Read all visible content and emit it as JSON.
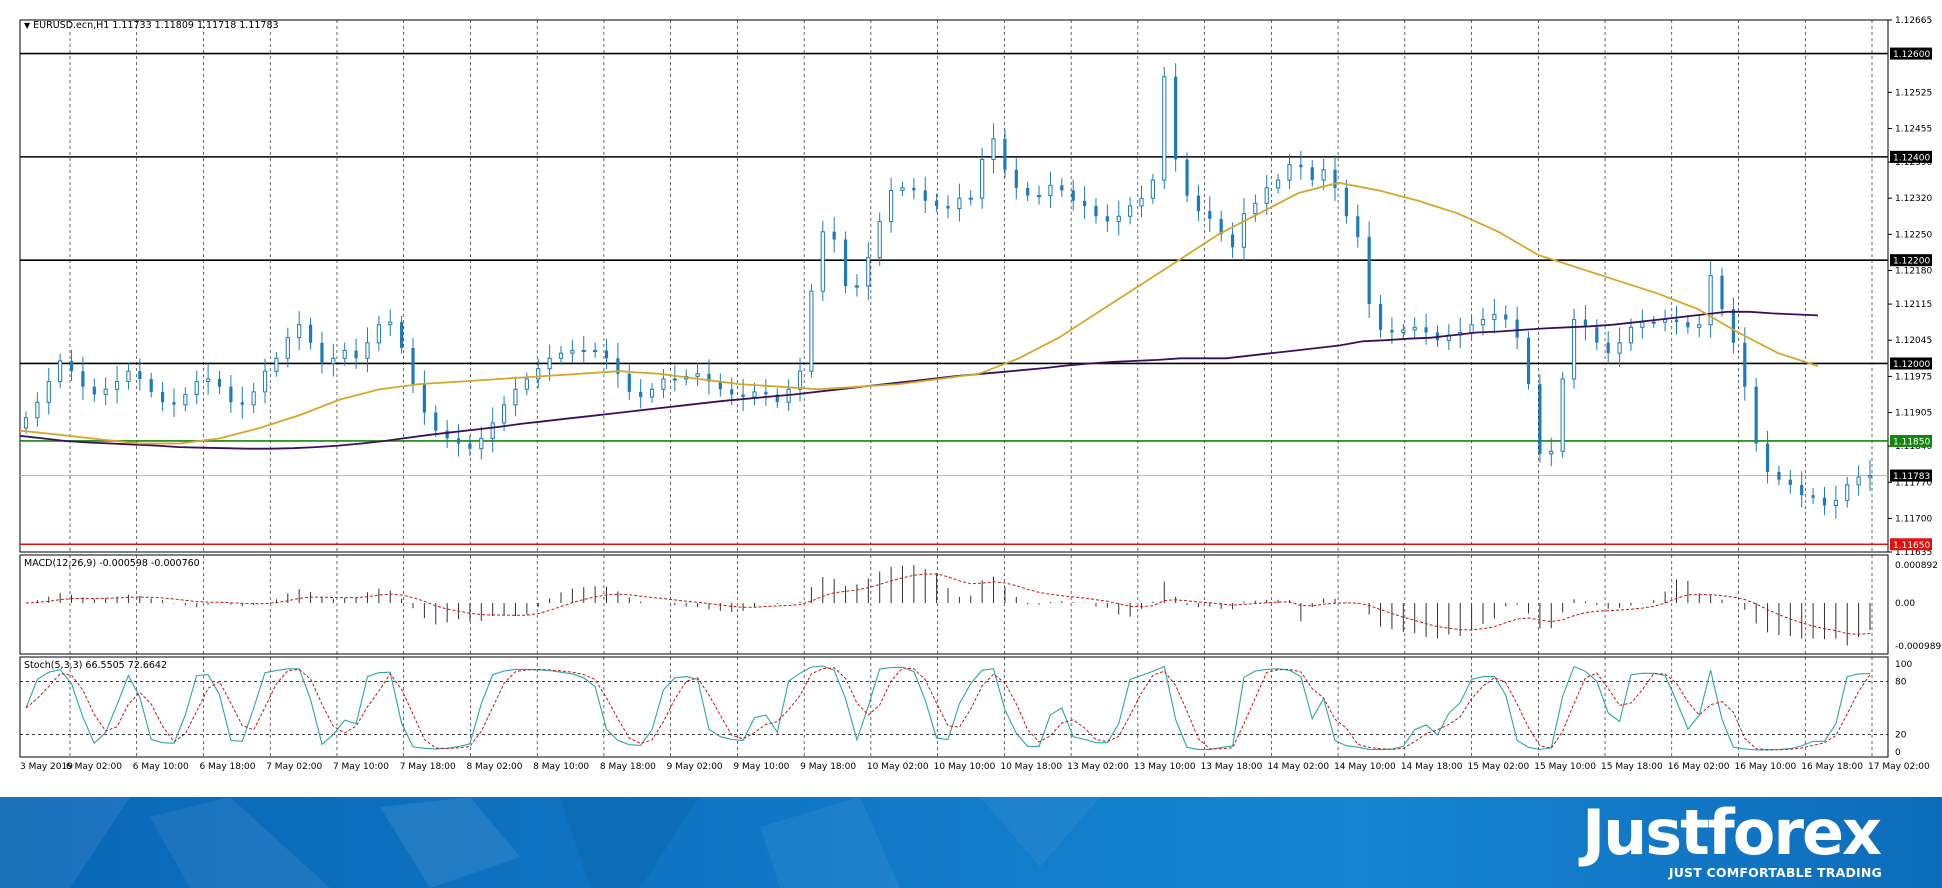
{
  "header": {
    "title": "EURUSD.ecn,H1  1.11733 1.11809 1.11718 1.11783",
    "macd_label": "MACD(12,26,9) -0.000598 -0.000760",
    "stoch_label": "Stoch(5,3,3) 66.5505 72.6642"
  },
  "brand": {
    "name": "Justforex",
    "tagline": "JUST COMFORTABLE TRADING"
  },
  "chart_data": [
    {
      "type": "candlestick",
      "title": "EURUSD.ecn,H1",
      "ohlc_current": {
        "open": 1.11733,
        "high": 1.11809,
        "low": 1.11718,
        "close": 1.11783
      },
      "ylim": [
        1.11635,
        1.12665
      ],
      "y_ticks": [
        "1.12665",
        "1.12525",
        "1.12455",
        "1.12390",
        "1.12320",
        "1.12250",
        "1.12180",
        "1.12115",
        "1.12045",
        "1.11975",
        "1.11905",
        "1.11840",
        "1.11770",
        "1.11700",
        "1.11635"
      ],
      "x_labels": [
        "3 May 2019",
        "6 May 02:00",
        "6 May 10:00",
        "6 May 18:00",
        "7 May 02:00",
        "7 May 10:00",
        "7 May 18:00",
        "8 May 02:00",
        "8 May 10:00",
        "8 May 18:00",
        "9 May 02:00",
        "9 May 10:00",
        "9 May 18:00",
        "10 May 02:00",
        "10 May 10:00",
        "10 May 18:00",
        "13 May 02:00",
        "13 May 10:00",
        "13 May 18:00",
        "14 May 02:00",
        "14 May 10:00",
        "14 May 18:00",
        "15 May 02:00",
        "15 May 10:00",
        "15 May 18:00",
        "16 May 02:00",
        "16 May 10:00",
        "16 May 18:00",
        "17 May 02:00"
      ],
      "levels": [
        {
          "label": "1.12600",
          "value": 1.126,
          "color": "#000000"
        },
        {
          "label": "1.12400",
          "value": 1.124,
          "color": "#000000"
        },
        {
          "label": "1.12200",
          "value": 1.122,
          "color": "#000000"
        },
        {
          "label": "1.12000",
          "value": 1.12,
          "color": "#000000"
        },
        {
          "label": "1.11850",
          "value": 1.1185,
          "color": "#16850f"
        },
        {
          "label": "1.11783",
          "value": 1.11783,
          "color": "#b0b0b0"
        },
        {
          "label": "1.11650",
          "value": 1.1165,
          "color": "#e01010"
        }
      ],
      "close_series": [
        1.11895,
        1.11925,
        1.11965,
        1.12005,
        1.11985,
        1.11955,
        1.1194,
        1.1195,
        1.11965,
        1.11985,
        1.1197,
        1.11945,
        1.11925,
        1.1192,
        1.1194,
        1.11965,
        1.1197,
        1.11955,
        1.11925,
        1.1192,
        1.11945,
        1.11985,
        1.1201,
        1.1205,
        1.12075,
        1.1204,
        1.12,
        1.1201,
        1.12025,
        1.1201,
        1.1204,
        1.12075,
        1.1208,
        1.1203,
        1.1196,
        1.11905,
        1.1187,
        1.11855,
        1.11845,
        1.11835,
        1.11855,
        1.11885,
        1.1192,
        1.1195,
        1.1197,
        1.1199,
        1.1201,
        1.1202,
        1.12025,
        1.12025,
        1.12025,
        1.1201,
        1.1198,
        1.11945,
        1.11935,
        1.1195,
        1.1197,
        1.1197,
        1.11975,
        1.1198,
        1.11965,
        1.1195,
        1.1194,
        1.11935,
        1.11945,
        1.1194,
        1.11925,
        1.1195,
        1.11985,
        1.1214,
        1.12255,
        1.1224,
        1.1215,
        1.1215,
        1.12205,
        1.12275,
        1.12335,
        1.1234,
        1.12335,
        1.12315,
        1.12305,
        1.123,
        1.1232,
        1.1232,
        1.12395,
        1.12435,
        1.12375,
        1.1234,
        1.12325,
        1.12325,
        1.12345,
        1.12335,
        1.12315,
        1.12305,
        1.12285,
        1.12275,
        1.12285,
        1.12305,
        1.1232,
        1.12355,
        1.12555,
        1.12395,
        1.12325,
        1.12295,
        1.1228,
        1.1225,
        1.12225,
        1.1229,
        1.1231,
        1.1234,
        1.12355,
        1.12385,
        1.1238,
        1.12355,
        1.12375,
        1.1234,
        1.12285,
        1.12245,
        1.12115,
        1.12065,
        1.1206,
        1.12065,
        1.1207,
        1.1206,
        1.12045,
        1.12055,
        1.1206,
        1.12075,
        1.12085,
        1.12095,
        1.12085,
        1.1205,
        1.1196,
        1.11825,
        1.1183,
        1.1197,
        1.12085,
        1.1207,
        1.1204,
        1.1202,
        1.1204,
        1.1207,
        1.1208,
        1.1208,
        1.12085,
        1.1208,
        1.1207,
        1.12075,
        1.1217,
        1.12105,
        1.1204,
        1.11955,
        1.11845,
        1.1179,
        1.11775,
        1.11765,
        1.11745,
        1.1174,
        1.11725,
        1.11735,
        1.11765,
        1.1178,
        1.11783
      ],
      "ma_slow_series": [
        1.1186,
        1.11855,
        1.1185,
        1.11847,
        1.11845,
        1.11843,
        1.11841,
        1.11838,
        1.11837,
        1.11836,
        1.11835,
        1.11835,
        1.11836,
        1.11838,
        1.11841,
        1.11845,
        1.1185,
        1.11856,
        1.11862,
        1.11867,
        1.11872,
        1.11877,
        1.11883,
        1.11888,
        1.11893,
        1.11898,
        1.11903,
        1.11908,
        1.11913,
        1.11918,
        1.11923,
        1.11928,
        1.11932,
        1.11936,
        1.1194,
        1.11945,
        1.1195,
        1.11955,
        1.1196,
        1.11965,
        1.1197,
        1.11975,
        1.11979,
        1.11983,
        1.11987,
        1.11991,
        1.11996,
        1.12,
        1.12003,
        1.12005,
        1.12007,
        1.1201,
        1.1201,
        1.1201,
        1.12015,
        1.1202,
        1.12025,
        1.1203,
        1.12035,
        1.12043,
        1.12045,
        1.12048,
        1.1205,
        1.12055,
        1.1206,
        1.12062,
        1.12065,
        1.12068,
        1.1207,
        1.12072,
        1.12075,
        1.1208,
        1.12085,
        1.1209,
        1.12095,
        1.121,
        1.121,
        1.12097,
        1.12095,
        1.12093
      ],
      "ma_fast_series": [
        1.1187,
        1.11862,
        1.11853,
        1.11845,
        1.11845,
        1.11855,
        1.11875,
        1.119,
        1.1193,
        1.1195,
        1.1196,
        1.11965,
        1.1197,
        1.11975,
        1.1198,
        1.11985,
        1.1198,
        1.1197,
        1.1196,
        1.11955,
        1.1195,
        1.11955,
        1.1196,
        1.1197,
        1.1198,
        1.1201,
        1.1205,
        1.121,
        1.1215,
        1.122,
        1.1225,
        1.1229,
        1.1233,
        1.1235,
        1.12335,
        1.12315,
        1.1229,
        1.12255,
        1.1221,
        1.12185,
        1.1216,
        1.12135,
        1.12105,
        1.1206,
        1.1202,
        1.11995
      ],
      "macd": {
        "label": "MACD(12,26,9)",
        "main": -0.000598,
        "signal": -0.00076,
        "ticks": [
          "0.000892",
          "0.00",
          "-0.000989"
        ]
      },
      "stochastic": {
        "label": "Stoch(5,3,3)",
        "k": 66.5505,
        "d": 72.6642,
        "ticks": [
          "100",
          "80",
          "20",
          "0"
        ],
        "levels": [
          80,
          20
        ]
      }
    }
  ],
  "colors": {
    "candle": "#1c7bb8",
    "ma_fast": "#d4a72c",
    "ma_slow": "#3d0f5a",
    "macd_hist": "#303030",
    "macd_signal": "#c01818",
    "stoch_main": "#2fa5a8",
    "stoch_signal": "#c01818",
    "footer": "#0f77c5"
  }
}
